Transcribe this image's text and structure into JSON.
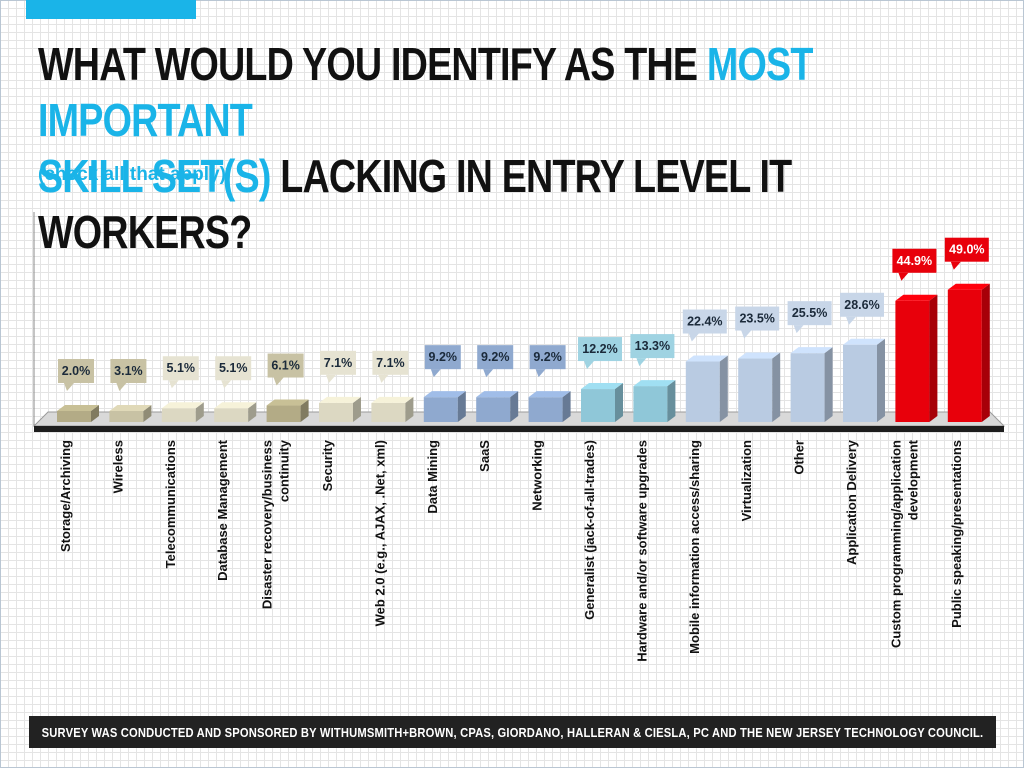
{
  "header": {
    "title_part1": "WHAT WOULD YOU IDENTIFY AS THE ",
    "title_highlight1": "MOST IMPORTANT",
    "title_highlight2": "SKILL SET(S)",
    "title_part2": " LACKING IN ENTRY LEVEL IT WORKERS?",
    "subtitle": "(check all that apply)"
  },
  "footer": {
    "text": "SURVEY WAS CONDUCTED AND SPONSORED BY WITHUMSMITH+BROWN, CPAS, GIORDANO, HALLERAN & CIESLA, PC AND THE NEW JERSEY TECHNOLOGY COUNCIL."
  },
  "colors": {
    "accent": "#1ab4e8",
    "tan": "#c8c2a4",
    "dark_tan": "#b3ab86",
    "blue": "#8fa9cf",
    "teal": "#8fc7d8",
    "light_blue": "#b9cbe2",
    "red": "#e8000b"
  },
  "chart_data": {
    "type": "bar",
    "title": "WHAT WOULD YOU IDENTIFY AS THE MOST IMPORTANT SKILL SET(S) LACKING IN ENTRY LEVEL IT WORKERS?",
    "subtitle": "(check all that apply)",
    "grid": true,
    "unit": "%",
    "ylim": [
      0,
      55
    ],
    "categories": [
      [
        "Storage/Archiving"
      ],
      [
        "Wireless"
      ],
      [
        "Telecommunications"
      ],
      [
        "Database Management"
      ],
      [
        "Disaster recovery/business",
        "continuity"
      ],
      [
        "Security"
      ],
      [
        "Web 2.0 (e.g., AJAX, .Net, xml)"
      ],
      [
        "Data Mining"
      ],
      [
        "SaaS"
      ],
      [
        "Networking"
      ],
      [
        "Generalist (jack-of-all-trades)"
      ],
      [
        "Hardware and/or software upgrades"
      ],
      [
        "Mobile information access/sharing"
      ],
      [
        "Virtualization"
      ],
      [
        "Other"
      ],
      [
        "Application Delivery"
      ],
      [
        "Custom programming/application",
        "development"
      ],
      [
        "Public speaking/presentations"
      ]
    ],
    "values": [
      2.0,
      3.1,
      5.1,
      5.1,
      6.1,
      7.1,
      7.1,
      9.2,
      9.2,
      9.2,
      12.2,
      13.3,
      22.4,
      23.5,
      25.5,
      28.6,
      44.9,
      49.0
    ],
    "labels": [
      "2.0%",
      "3.1%",
      "5.1%",
      "5.1%",
      "6.1%",
      "7.1%",
      "7.1%",
      "9.2%",
      "9.2%",
      "9.2%",
      "12.2%",
      "13.3%",
      "22.4%",
      "23.5%",
      "25.5%",
      "28.6%",
      "44.9%",
      "49.0%"
    ],
    "bar_colors": [
      "#b3ab86",
      "#c8c2a4",
      "#dcd8c2",
      "#dcd8c2",
      "#b3ab86",
      "#dcd8c2",
      "#dcd8c2",
      "#8fa9cf",
      "#8fa9cf",
      "#8fa9cf",
      "#8fc7d8",
      "#8fc7d8",
      "#b9cbe2",
      "#b9cbe2",
      "#b9cbe2",
      "#b9cbe2",
      "#e8000b",
      "#e8000b"
    ],
    "label_colors": [
      "#c8c2a4",
      "#c8c2a4",
      "#e6e3d2",
      "#e6e3d2",
      "#c8c2a4",
      "#e6e3d2",
      "#e6e3d2",
      "#8fa9cf",
      "#8fa9cf",
      "#8fa9cf",
      "#9fd3e2",
      "#9fd3e2",
      "#c8d6e8",
      "#c8d6e8",
      "#c8d6e8",
      "#c8d6e8",
      "#e8000b",
      "#e8000b"
    ]
  }
}
